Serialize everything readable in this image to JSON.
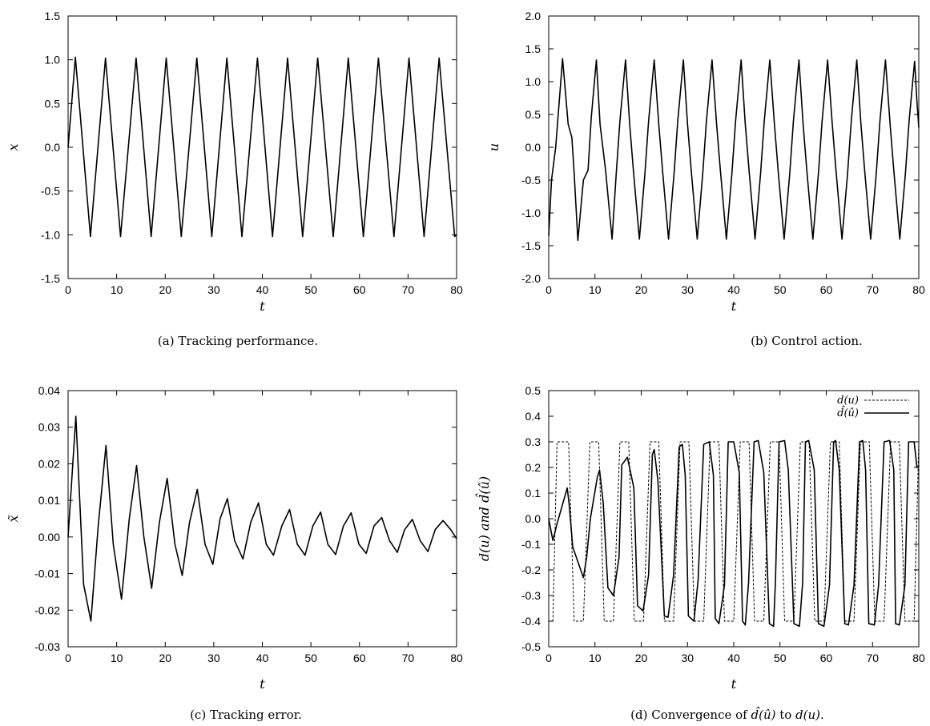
{
  "chart_data": [
    {
      "id": "a",
      "type": "line",
      "xlabel": "t",
      "ylabel": "x",
      "xlim": [
        0,
        80
      ],
      "ylim": [
        -1.5,
        1.5
      ],
      "xticks": [
        0,
        10,
        20,
        30,
        40,
        50,
        60,
        70,
        80
      ],
      "yticks": [
        1.5,
        1.0,
        0.5,
        0.0,
        -0.5,
        -1.0,
        -1.5
      ],
      "ytick_labels": [
        "1.5",
        "1.0",
        "0.5",
        "0.0",
        "-0.5",
        "-1.0",
        "-1.5"
      ],
      "grid": false,
      "caption": "(a)  Tracking performance.",
      "series": [
        {
          "style": "solid",
          "x": [
            0,
            1.5,
            4.6,
            7.7,
            10.8,
            14.0,
            17.1,
            20.2,
            23.3,
            26.5,
            29.6,
            32.7,
            35.8,
            39.0,
            42.1,
            45.2,
            48.3,
            51.4,
            54.6,
            57.7,
            60.8,
            63.9,
            67.1,
            70.2,
            73.3,
            76.4,
            79.6,
            80
          ],
          "y": [
            0,
            1.03,
            -1.02,
            1.02,
            -1.02,
            1.02,
            -1.02,
            1.02,
            -1.02,
            1.02,
            -1.02,
            1.02,
            -1.02,
            1.02,
            -1.02,
            1.02,
            -1.02,
            1.02,
            -1.02,
            1.02,
            -1.02,
            1.02,
            -1.02,
            1.02,
            -1.02,
            1.02,
            -1.02,
            -1.0
          ]
        }
      ]
    },
    {
      "id": "b",
      "type": "line",
      "xlabel": "t",
      "ylabel": "u",
      "xlim": [
        0,
        80
      ],
      "ylim": [
        -2.0,
        2.0
      ],
      "xticks": [
        0,
        10,
        20,
        30,
        40,
        50,
        60,
        70,
        80
      ],
      "yticks": [
        2.0,
        1.5,
        1.0,
        0.5,
        0.0,
        -0.5,
        -1.0,
        -1.5,
        -2.0
      ],
      "ytick_labels": [
        "2.0",
        "1.5",
        "1.0",
        "0.5",
        "0.0",
        "-0.5",
        "-1.0",
        "-1.5",
        "-2.0"
      ],
      "grid": false,
      "caption": "(b)  Control action.",
      "series": [
        {
          "style": "solid",
          "x": [
            0,
            0.6,
            1.5,
            3.0,
            4.2,
            5.0,
            5.5,
            6.3,
            7.5,
            8.5,
            9.2,
            10.3,
            11.1,
            12.3,
            13.7,
            14.6,
            15.4,
            16.6,
            17.5,
            18.3,
            19.6,
            20.8,
            21.6,
            22.8,
            23.8,
            24.6,
            25.9,
            27.1,
            27.9,
            29.1,
            30.0,
            30.8,
            32.1,
            33.3,
            34.1,
            35.3,
            36.3,
            37.1,
            38.4,
            39.6,
            40.4,
            41.6,
            42.5,
            43.3,
            44.6,
            45.8,
            46.6,
            47.8,
            48.8,
            49.6,
            50.9,
            52.1,
            52.9,
            54.1,
            55.0,
            55.8,
            57.1,
            58.3,
            59.1,
            60.3,
            61.3,
            62.1,
            63.4,
            64.6,
            65.4,
            66.6,
            67.5,
            68.3,
            69.6,
            70.8,
            71.6,
            72.8,
            73.8,
            74.6,
            75.9,
            77.1,
            77.9,
            79.1,
            79.6,
            80
          ],
          "y": [
            -1.35,
            -0.5,
            0.0,
            1.35,
            0.35,
            0.15,
            -0.4,
            -1.42,
            -0.5,
            -0.35,
            0.45,
            1.33,
            0.35,
            -0.35,
            -1.4,
            -0.4,
            0.4,
            1.33,
            0.35,
            -0.35,
            -1.4,
            -0.4,
            0.4,
            1.33,
            0.35,
            -0.35,
            -1.4,
            -0.4,
            0.4,
            1.33,
            0.35,
            -0.35,
            -1.4,
            -0.4,
            0.4,
            1.33,
            0.35,
            -0.35,
            -1.4,
            -0.4,
            0.4,
            1.33,
            0.35,
            -0.35,
            -1.4,
            -0.4,
            0.4,
            1.33,
            0.35,
            -0.35,
            -1.4,
            -0.4,
            0.4,
            1.33,
            0.35,
            -0.35,
            -1.4,
            -0.4,
            0.4,
            1.33,
            0.35,
            -0.35,
            -1.4,
            -0.4,
            0.4,
            1.33,
            0.35,
            -0.35,
            -1.4,
            -0.4,
            0.4,
            1.33,
            0.35,
            -0.35,
            -1.4,
            -0.4,
            0.4,
            1.31,
            0.7,
            0.3
          ]
        }
      ]
    },
    {
      "id": "c",
      "type": "line",
      "xlabel": "t",
      "ylabel": "x̃",
      "xlim": [
        0,
        80
      ],
      "ylim": [
        -0.03,
        0.04
      ],
      "xticks": [
        0,
        10,
        20,
        30,
        40,
        50,
        60,
        70,
        80
      ],
      "yticks": [
        0.04,
        0.03,
        0.02,
        0.01,
        0.0,
        -0.01,
        -0.02,
        -0.03
      ],
      "ytick_labels": [
        "0.04",
        "0.03",
        "0.02",
        "0.01",
        "0.00",
        "-0.01",
        "-0.02",
        "-0.03"
      ],
      "grid": false,
      "caption": "(c)  Tracking error.",
      "series": [
        {
          "style": "solid",
          "x": [
            0,
            1.6,
            3.2,
            4.7,
            6.2,
            7.8,
            9.3,
            11.0,
            12.6,
            14.1,
            15.6,
            17.2,
            18.8,
            20.4,
            22.0,
            23.5,
            25.0,
            26.6,
            28.2,
            29.8,
            31.3,
            32.8,
            34.3,
            36.0,
            37.6,
            39.2,
            40.8,
            42.3,
            44.0,
            45.6,
            47.2,
            48.8,
            50.4,
            52.0,
            53.5,
            55.1,
            56.7,
            58.3,
            59.9,
            61.4,
            63.0,
            64.6,
            66.2,
            67.8,
            69.3,
            70.9,
            72.5,
            74.1,
            75.6,
            77.2,
            78.8,
            80.0
          ],
          "y": [
            0,
            0.033,
            -0.013,
            -0.023,
            0.003,
            0.025,
            -0.002,
            -0.017,
            0.005,
            0.0195,
            0.0,
            -0.014,
            0.004,
            0.016,
            -0.002,
            -0.0105,
            0.004,
            0.013,
            -0.002,
            -0.0075,
            0.005,
            0.0105,
            -0.001,
            -0.006,
            0.004,
            0.0093,
            -0.002,
            -0.005,
            0.003,
            0.0075,
            -0.002,
            -0.005,
            0.003,
            0.0068,
            -0.002,
            -0.0048,
            0.003,
            0.0066,
            -0.002,
            -0.0045,
            0.003,
            0.0053,
            -0.001,
            -0.0042,
            0.002,
            0.0048,
            -0.001,
            -0.004,
            0.002,
            0.0045,
            0.002,
            -0.0005
          ]
        }
      ]
    },
    {
      "id": "d",
      "type": "line",
      "xlabel": "t",
      "ylabel": "d(u) and d̂(û)",
      "xlim": [
        0,
        80
      ],
      "ylim": [
        -0.5,
        0.5
      ],
      "xticks": [
        0,
        10,
        20,
        30,
        40,
        50,
        60,
        70,
        80
      ],
      "yticks": [
        0.5,
        0.4,
        0.3,
        0.2,
        0.1,
        0.0,
        -0.1,
        -0.2,
        -0.3,
        -0.4,
        -0.5
      ],
      "ytick_labels": [
        "0.5",
        "0.4",
        "0.3",
        "0.2",
        "0.1",
        "0.0",
        "-0.1",
        "-0.2",
        "-0.3",
        "-0.4",
        "-0.5"
      ],
      "grid": false,
      "legend_position": "top-right",
      "legend": [
        "d(u)",
        "d̂(û)"
      ],
      "caption_parts": [
        "(d)  Convergence of ",
        "d̂(û)",
        " to ",
        "d(u)",
        "."
      ],
      "series": [
        {
          "name": "d(u)",
          "style": "dashed",
          "x": [
            0,
            0.9,
            1.8,
            4.3,
            5.5,
            7.5,
            8.9,
            10.8,
            12.0,
            14.0,
            15.4,
            17.3,
            18.5,
            20.5,
            21.9,
            23.8,
            25.0,
            27.0,
            28.4,
            30.3,
            31.5,
            33.5,
            34.9,
            36.8,
            38.0,
            40.0,
            41.4,
            43.3,
            44.5,
            46.5,
            47.9,
            49.8,
            51.0,
            53.0,
            54.4,
            56.3,
            57.5,
            59.5,
            60.9,
            62.8,
            64.0,
            66.0,
            67.4,
            69.3,
            70.5,
            72.5,
            73.9,
            75.8,
            77.0,
            79.0,
            80.0
          ],
          "y": [
            -0.4,
            -0.4,
            0.3,
            0.3,
            -0.4,
            -0.4,
            0.3,
            0.3,
            -0.4,
            -0.4,
            0.3,
            0.3,
            -0.4,
            -0.4,
            0.3,
            0.3,
            -0.4,
            -0.4,
            0.3,
            0.3,
            -0.4,
            -0.4,
            0.3,
            0.3,
            -0.4,
            -0.4,
            0.3,
            0.3,
            -0.4,
            -0.4,
            0.3,
            0.3,
            -0.4,
            -0.4,
            0.3,
            0.3,
            -0.4,
            -0.4,
            0.3,
            0.3,
            -0.4,
            -0.4,
            0.3,
            0.3,
            -0.4,
            -0.4,
            0.3,
            0.3,
            -0.4,
            -0.4,
            0.3
          ]
        },
        {
          "name": "d̂(û)",
          "style": "solid",
          "x": [
            0,
            0.9,
            1.8,
            4.0,
            4.4,
            5.2,
            7.5,
            8.2,
            9.0,
            10.5,
            11.0,
            11.8,
            12.8,
            14.0,
            15.2,
            15.8,
            16.2,
            17.0,
            18.4,
            19.2,
            20.4,
            21.6,
            22.4,
            22.8,
            23.6,
            25.0,
            25.8,
            27.0,
            28.2,
            28.9,
            29.5,
            30.2,
            31.4,
            32.3,
            33.5,
            34.7,
            35.6,
            36.0,
            36.8,
            38.0,
            38.8,
            40.0,
            41.2,
            41.9,
            42.5,
            43.2,
            44.4,
            45.3,
            46.5,
            47.7,
            48.6,
            49.0,
            49.8,
            51.0,
            51.8,
            53.0,
            54.2,
            54.9,
            55.5,
            56.2,
            57.4,
            58.3,
            59.5,
            60.7,
            61.6,
            62.0,
            62.8,
            64.0,
            64.8,
            66.0,
            67.2,
            67.9,
            68.5,
            69.2,
            70.4,
            71.3,
            72.5,
            73.7,
            74.6,
            75.0,
            75.8,
            77.0,
            77.8,
            79.0,
            79.6,
            80.0
          ],
          "y": [
            0.0,
            -0.085,
            -0.02,
            0.12,
            0.06,
            -0.11,
            -0.23,
            -0.15,
            0.0,
            0.16,
            0.19,
            0.06,
            -0.27,
            -0.3,
            -0.15,
            0.21,
            0.22,
            0.24,
            0.12,
            -0.34,
            -0.36,
            -0.22,
            0.25,
            0.27,
            0.15,
            -0.38,
            -0.385,
            -0.22,
            0.28,
            0.29,
            0.17,
            -0.38,
            -0.4,
            -0.24,
            0.29,
            0.3,
            0.17,
            -0.39,
            -0.41,
            -0.26,
            0.3,
            0.3,
            0.18,
            -0.4,
            -0.415,
            -0.25,
            0.3,
            0.305,
            0.18,
            -0.41,
            -0.42,
            -0.25,
            0.3,
            0.305,
            0.19,
            -0.41,
            -0.42,
            -0.25,
            0.3,
            0.305,
            0.19,
            -0.41,
            -0.42,
            -0.26,
            0.3,
            0.305,
            0.19,
            -0.41,
            -0.415,
            -0.26,
            0.3,
            0.305,
            0.19,
            -0.41,
            -0.415,
            -0.26,
            0.3,
            0.305,
            0.19,
            -0.41,
            -0.415,
            -0.26,
            0.3,
            0.3,
            0.2,
            0.2
          ]
        }
      ]
    }
  ]
}
